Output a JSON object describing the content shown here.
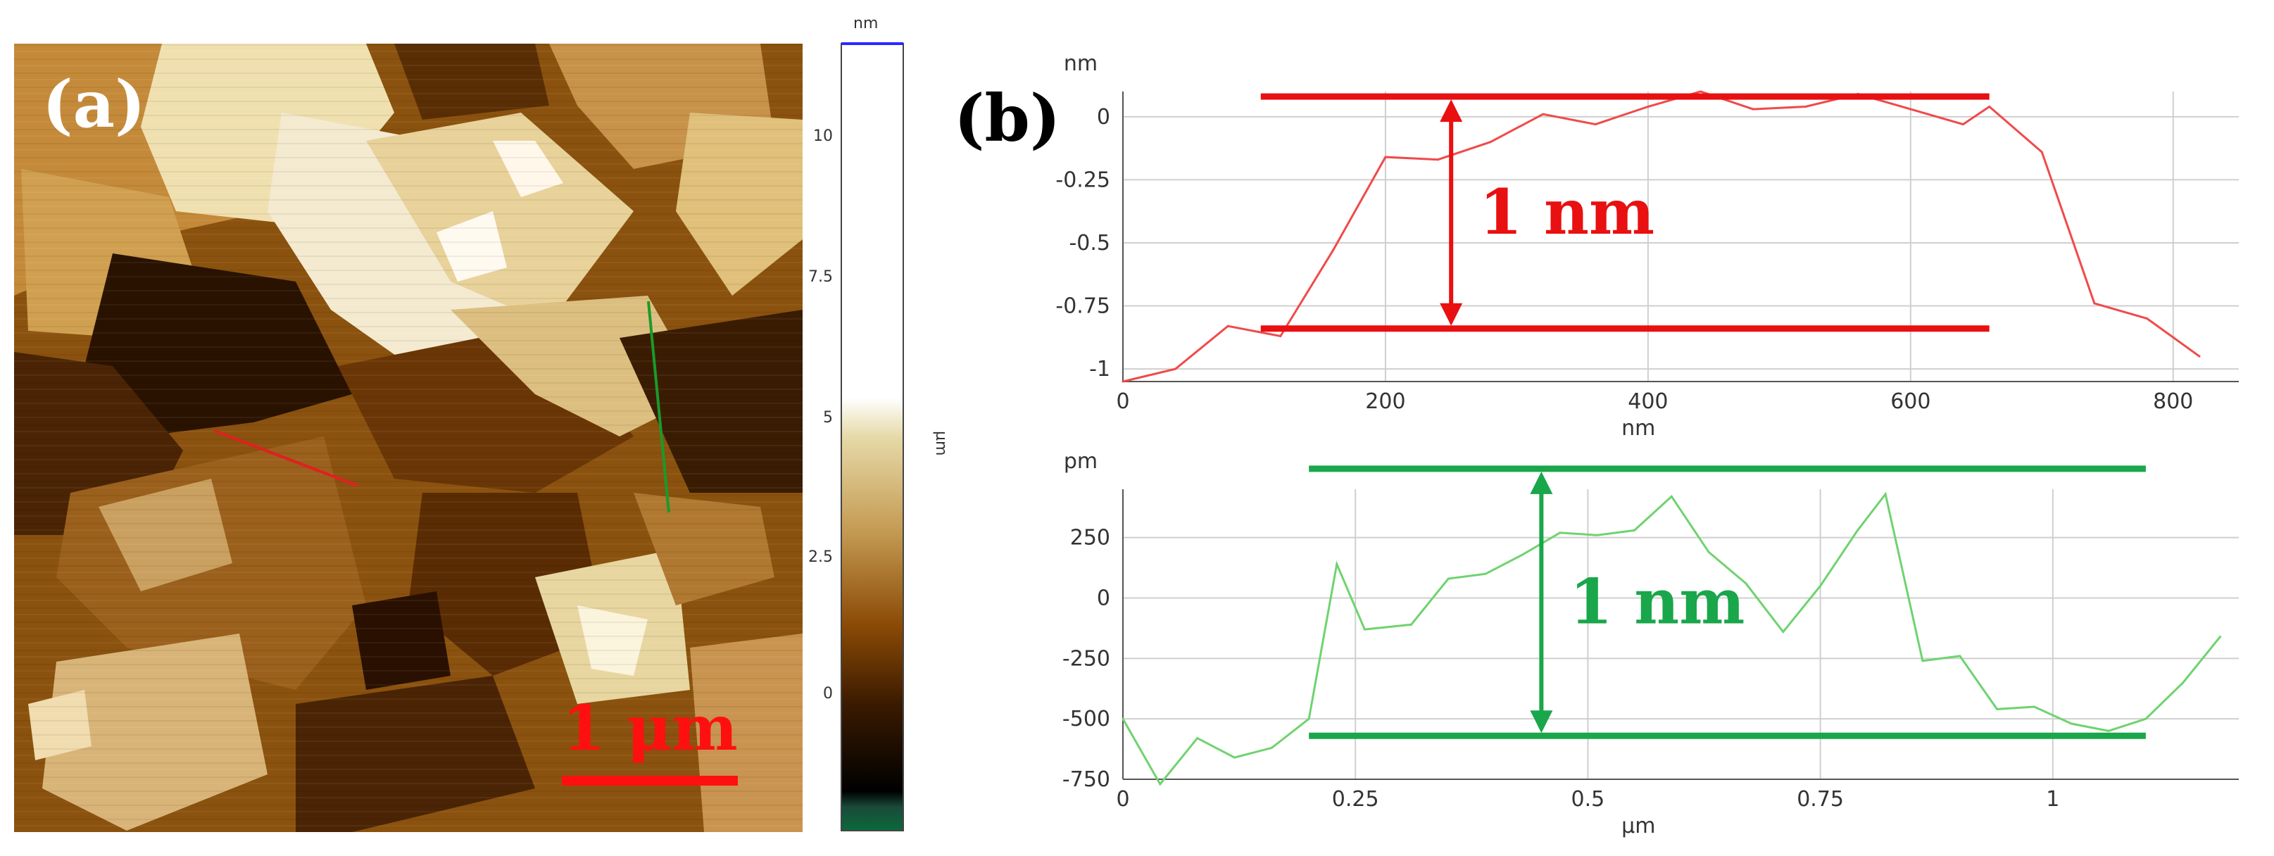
{
  "panel_a": {
    "label": "(a)",
    "scale_bar_label": "1 μm",
    "colorbar": {
      "unit_top": "nm",
      "unit_side": "µm",
      "ticks": [
        "10",
        "7.5",
        "5",
        "2.5",
        "0"
      ],
      "colors": {
        "dark": "#000000",
        "mid": "#8a4a06",
        "light": "#d8c27a",
        "white": "#ffffff"
      }
    }
  },
  "panel_b": {
    "label": "(b)"
  },
  "chart_data": [
    {
      "type": "line",
      "name": "profile-red",
      "color": "#f04a4a",
      "annotation_color": "#e81010",
      "x": [
        0,
        40,
        80,
        120,
        160,
        200,
        240,
        280,
        320,
        360,
        400,
        440,
        480,
        520,
        560,
        600,
        640,
        660,
        700,
        740,
        780,
        820
      ],
      "y": [
        -1.05,
        -1.0,
        -0.83,
        -0.87,
        -0.53,
        -0.16,
        -0.17,
        -0.1,
        0.01,
        -0.03,
        0.04,
        0.1,
        0.03,
        0.04,
        0.09,
        0.03,
        -0.03,
        0.04,
        -0.14,
        -0.74,
        -0.8,
        -0.95
      ],
      "xlabel": "nm",
      "ylabel": "nm",
      "xlim": [
        0,
        850
      ],
      "ylim": [
        -1.05,
        0.1
      ],
      "xticks": [
        0,
        200,
        400,
        600,
        800
      ],
      "xtick_labels": [
        "0",
        "200",
        "400",
        "600",
        "800"
      ],
      "yticks": [
        0,
        -0.25,
        -0.5,
        -0.75,
        -1
      ],
      "ytick_labels": [
        "0",
        "-0.25",
        "-0.5",
        "-0.75",
        "-1"
      ],
      "grid": true,
      "annotation": {
        "label": "1 nm",
        "top_y": 0.08,
        "bottom_y": -0.84,
        "line_x_range": [
          105,
          660
        ],
        "arrow_x": 250
      }
    },
    {
      "type": "line",
      "name": "profile-green",
      "color": "#6fd36f",
      "annotation_color": "#1aa64a",
      "x": [
        0,
        0.04,
        0.08,
        0.12,
        0.16,
        0.2,
        0.23,
        0.26,
        0.31,
        0.35,
        0.39,
        0.43,
        0.47,
        0.51,
        0.55,
        0.59,
        0.63,
        0.67,
        0.71,
        0.75,
        0.79,
        0.82,
        0.86,
        0.9,
        0.94,
        0.98,
        1.02,
        1.06,
        1.1,
        1.14,
        1.18
      ],
      "y": [
        -500,
        -770,
        -580,
        -660,
        -620,
        -500,
        140,
        -130,
        -110,
        80,
        100,
        180,
        270,
        260,
        280,
        420,
        190,
        60,
        -140,
        50,
        280,
        430,
        -260,
        -240,
        -460,
        -450,
        -520,
        -550,
        -500,
        -350,
        -160
      ],
      "xlabel": "µm",
      "ylabel": "pm",
      "xlim": [
        0,
        1.2
      ],
      "ylim": [
        -750,
        450
      ],
      "xticks": [
        0,
        0.25,
        0.5,
        0.75,
        1
      ],
      "xtick_labels": [
        "0",
        "0.25",
        "0.5",
        "0.75",
        "1"
      ],
      "yticks": [
        250,
        0,
        -250,
        -500,
        -750
      ],
      "ytick_labels": [
        "250",
        "0",
        "-250",
        "-500",
        "-750"
      ],
      "grid": true,
      "annotation": {
        "label": "1 nm",
        "top_y": 535,
        "bottom_y": -570,
        "line_x_range": [
          0.2,
          1.1
        ],
        "arrow_x": 0.45
      }
    }
  ]
}
